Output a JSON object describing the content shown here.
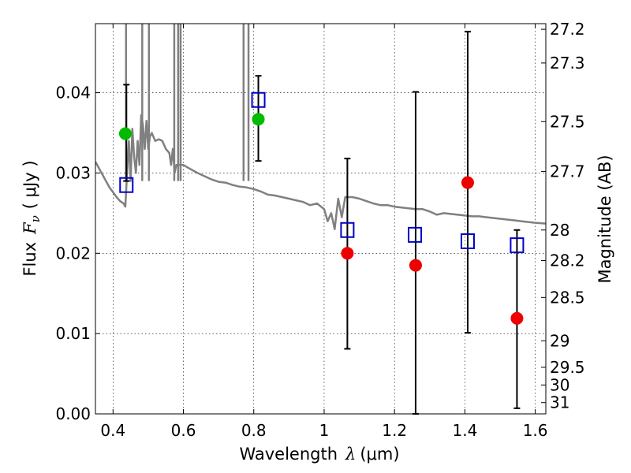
{
  "chart_data": {
    "type": "scatter",
    "title": "",
    "xlabel": "Wavelength",
    "xlabel_symbol": "λ",
    "xlabel_unit": "(μm)",
    "ylabel": "Flux",
    "ylabel_symbol": "F",
    "ylabel_subscript": "ν",
    "ylabel_unit": "( μJy )",
    "y2label": "Magnitude (AB)",
    "xlim": [
      0.35,
      1.63
    ],
    "ylim": [
      0.0,
      0.0486
    ],
    "grid": true,
    "x_ticks": [
      0.4,
      0.6,
      0.8,
      1.0,
      1.2,
      1.4,
      1.6
    ],
    "x_tick_labels": [
      "0.4",
      "0.6",
      "0.8",
      "1",
      "1.2",
      "1.4",
      "1.6"
    ],
    "y_ticks": [
      0.0,
      0.01,
      0.02,
      0.03,
      0.04
    ],
    "y_tick_labels": [
      "0.00",
      "0.01",
      "0.02",
      "0.03",
      "0.04"
    ],
    "y2_ticks": [
      {
        "label": "27.2",
        "flux": 0.0479
      },
      {
        "label": "27.3",
        "flux": 0.0437
      },
      {
        "label": "27.5",
        "flux": 0.0364
      },
      {
        "label": "27.7",
        "flux": 0.0302
      },
      {
        "label": "28",
        "flux": 0.0229
      },
      {
        "label": "28.2",
        "flux": 0.0191
      },
      {
        "label": "28.5",
        "flux": 0.0145
      },
      {
        "label": "29",
        "flux": 0.0091
      },
      {
        "label": "29.5",
        "flux": 0.0058
      },
      {
        "label": "30",
        "flux": 0.0036
      },
      {
        "label": "31",
        "flux": 0.0014
      }
    ],
    "series": [
      {
        "name": "model spectrum",
        "kind": "line",
        "color": "#808080",
        "points": [
          [
            0.35,
            0.0314
          ],
          [
            0.37,
            0.0298
          ],
          [
            0.39,
            0.0282
          ],
          [
            0.41,
            0.027
          ],
          [
            0.42,
            0.0265
          ],
          [
            0.43,
            0.0262
          ],
          [
            0.435,
            0.0258
          ],
          [
            0.44,
            0.03
          ],
          [
            0.445,
            0.034
          ],
          [
            0.45,
            0.029
          ],
          [
            0.455,
            0.0355
          ],
          [
            0.46,
            0.032
          ],
          [
            0.465,
            0.03
          ],
          [
            0.47,
            0.034
          ],
          [
            0.475,
            0.031
          ],
          [
            0.48,
            0.0372
          ],
          [
            0.485,
            0.036
          ],
          [
            0.49,
            0.033
          ],
          [
            0.495,
            0.0365
          ],
          [
            0.5,
            0.033
          ],
          [
            0.505,
            0.0345
          ],
          [
            0.51,
            0.035
          ],
          [
            0.52,
            0.034
          ],
          [
            0.53,
            0.0342
          ],
          [
            0.54,
            0.034
          ],
          [
            0.55,
            0.033
          ],
          [
            0.56,
            0.0325
          ],
          [
            0.565,
            0.031
          ],
          [
            0.57,
            0.033
          ],
          [
            0.575,
            0.03
          ],
          [
            0.58,
            0.031
          ],
          [
            0.6,
            0.031
          ],
          [
            0.62,
            0.0305
          ],
          [
            0.64,
            0.03
          ],
          [
            0.66,
            0.0296
          ],
          [
            0.68,
            0.0292
          ],
          [
            0.7,
            0.0289
          ],
          [
            0.72,
            0.0288
          ],
          [
            0.74,
            0.0285
          ],
          [
            0.76,
            0.0283
          ],
          [
            0.78,
            0.0282
          ],
          [
            0.8,
            0.028
          ],
          [
            0.82,
            0.0277
          ],
          [
            0.84,
            0.0273
          ],
          [
            0.86,
            0.0272
          ],
          [
            0.88,
            0.027
          ],
          [
            0.9,
            0.0268
          ],
          [
            0.92,
            0.0266
          ],
          [
            0.94,
            0.0264
          ],
          [
            0.96,
            0.026
          ],
          [
            0.98,
            0.0262
          ],
          [
            1.0,
            0.0255
          ],
          [
            1.01,
            0.024
          ],
          [
            1.02,
            0.025
          ],
          [
            1.03,
            0.023
          ],
          [
            1.04,
            0.0268
          ],
          [
            1.05,
            0.0245
          ],
          [
            1.06,
            0.027
          ],
          [
            1.08,
            0.027
          ],
          [
            1.1,
            0.0268
          ],
          [
            1.12,
            0.0265
          ],
          [
            1.14,
            0.0262
          ],
          [
            1.16,
            0.026
          ],
          [
            1.18,
            0.026
          ],
          [
            1.2,
            0.0258
          ],
          [
            1.22,
            0.0257
          ],
          [
            1.24,
            0.0256
          ],
          [
            1.26,
            0.0255
          ],
          [
            1.28,
            0.0255
          ],
          [
            1.3,
            0.0252
          ],
          [
            1.32,
            0.0248
          ],
          [
            1.34,
            0.025
          ],
          [
            1.36,
            0.0249
          ],
          [
            1.38,
            0.0248
          ],
          [
            1.4,
            0.0247
          ],
          [
            1.42,
            0.0246
          ],
          [
            1.44,
            0.0246
          ],
          [
            1.46,
            0.0245
          ],
          [
            1.48,
            0.0244
          ],
          [
            1.5,
            0.0243
          ],
          [
            1.52,
            0.0242
          ],
          [
            1.54,
            0.0241
          ],
          [
            1.56,
            0.024
          ],
          [
            1.58,
            0.0239
          ],
          [
            1.6,
            0.0238
          ],
          [
            1.63,
            0.0237
          ]
        ]
      },
      {
        "name": "emission spikes",
        "kind": "spikes",
        "color": "#808080",
        "x": [
          0.437,
          0.483,
          0.502,
          0.574,
          0.585,
          0.592,
          0.771,
          0.785
        ]
      },
      {
        "name": "model magnitudes",
        "kind": "open-square",
        "color": "#0000cc",
        "points": [
          [
            0.438,
            0.0285
          ],
          [
            0.813,
            0.0391
          ],
          [
            1.066,
            0.0229
          ],
          [
            1.258,
            0.0223
          ],
          [
            1.408,
            0.0215
          ],
          [
            1.548,
            0.021
          ]
        ]
      },
      {
        "name": "detections",
        "kind": "filled-circle",
        "color": "#00bb00",
        "points": [
          [
            0.435,
            0.0349
          ],
          [
            0.813,
            0.0367
          ]
        ]
      },
      {
        "name": "upper limits",
        "kind": "filled-circle",
        "color": "#ee0000",
        "points": [
          [
            1.066,
            0.02
          ],
          [
            1.26,
            0.0185
          ],
          [
            1.408,
            0.0288
          ],
          [
            1.548,
            0.0119
          ]
        ]
      },
      {
        "name": "error bars",
        "kind": "errorbar",
        "color": "#000000",
        "bars": [
          [
            0.438,
            0.029,
            0.041
          ],
          [
            0.813,
            0.0315,
            0.0421
          ],
          [
            1.066,
            0.0081,
            0.0318
          ],
          [
            1.26,
            0.0,
            0.0401
          ],
          [
            1.408,
            0.0101,
            0.0476
          ],
          [
            1.548,
            0.0007,
            0.0229
          ]
        ]
      }
    ]
  }
}
